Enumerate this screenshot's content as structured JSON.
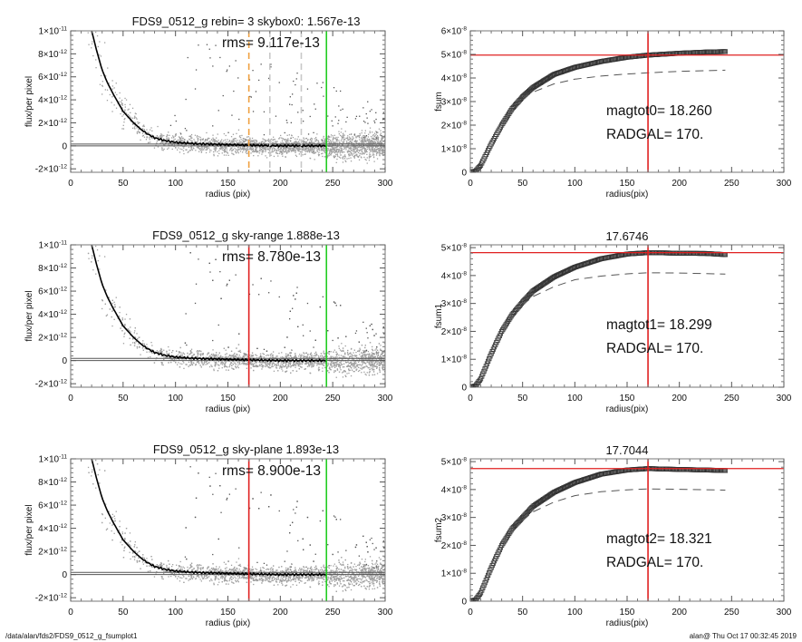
{
  "footer": {
    "left": "/data/alan/fds2/FDS9_0512_g_fsumplot1",
    "right": "alan@  Thu Oct 17 00:32:45 2019"
  },
  "colors": {
    "scatter": "#a0a0a0",
    "outlier": "#555555",
    "profile": "#000000",
    "red": "#e02020",
    "green": "#22cc22",
    "orange": "#f0a040",
    "dashed_gray": "#b8b8b8",
    "curve": "#333333"
  },
  "chart_data": [
    {
      "type": "scatter",
      "title": "FDS9_0512_g rebin= 3    skybox0:  1.567e-13",
      "annotation": "rms= 9.117e-13",
      "xlabel": "radius (pix)",
      "ylabel": "flux/per pixel",
      "xlim": [
        0,
        300
      ],
      "ylim": [
        -2.3e-12,
        1e-11
      ],
      "xticks": [
        0,
        50,
        100,
        150,
        200,
        250,
        300
      ],
      "xticklabels": [
        "0",
        "50",
        "100",
        "150",
        "200",
        "250",
        "300"
      ],
      "yticks": [
        -2e-12,
        0,
        2e-12,
        4e-12,
        6e-12,
        8e-12,
        1e-11
      ],
      "yticklabels": [
        "-2×10^-12",
        "0",
        "2×10^-12",
        "4×10^-12",
        "6×10^-12",
        "8×10^-12",
        "1×10^-11"
      ],
      "profile": {
        "x": [
          20,
          25,
          30,
          35,
          40,
          50,
          60,
          70,
          80,
          90,
          100,
          120,
          150,
          200,
          244
        ],
        "y": [
          1e-11,
          8.2e-12,
          6.6e-12,
          5.5e-12,
          4.6e-12,
          3e-12,
          2e-12,
          1.2e-12,
          7e-13,
          4.5e-13,
          3e-13,
          1.8e-13,
          1e-13,
          0,
          0
        ]
      },
      "hlines": [
        {
          "y": 0,
          "color": "#555555"
        },
        {
          "y": 1.567e-13,
          "color": "#555555"
        }
      ],
      "vlines": [
        {
          "x": 170,
          "color": "#f0a040",
          "style": "dashed"
        },
        {
          "x": 190,
          "color": "#c8c8c8",
          "style": "dashed"
        },
        {
          "x": 220,
          "color": "#c8c8c8",
          "style": "dashed"
        },
        {
          "x": 244,
          "color": "#22cc22",
          "style": "solid"
        }
      ]
    },
    {
      "type": "line",
      "title": "",
      "annotation": [
        "magtot0=  18.260",
        "RADGAL=    170."
      ],
      "xlabel": "radius(pix)",
      "ylabel": "fsum",
      "xlim": [
        0,
        300
      ],
      "ylim": [
        0,
        6e-08
      ],
      "xticks": [
        0,
        50,
        100,
        150,
        200,
        250,
        300
      ],
      "xticklabels": [
        "0",
        "50",
        "100",
        "150",
        "200",
        "250",
        "300"
      ],
      "yticks": [
        0,
        1e-08,
        2e-08,
        3e-08,
        4e-08,
        5e-08,
        6e-08
      ],
      "yticklabels": [
        "0",
        "1×10^-8",
        "2×10^-8",
        "3×10^-8",
        "4×10^-8",
        "5×10^-8",
        "6×10^-8"
      ],
      "series": [
        {
          "style": "symbols",
          "x": [
            0,
            5,
            10,
            20,
            30,
            40,
            50,
            60,
            80,
            100,
            125,
            150,
            170,
            200,
            225,
            244
          ],
          "y": [
            0,
            5e-10,
            3e-09,
            1.2e-08,
            2e-08,
            2.7e-08,
            3.2e-08,
            3.6e-08,
            4.15e-08,
            4.45e-08,
            4.7e-08,
            4.88e-08,
            4.97e-08,
            5.05e-08,
            5.1e-08,
            5.12e-08
          ]
        },
        {
          "style": "dashed",
          "x": [
            50,
            60,
            80,
            100,
            125,
            150,
            170,
            200,
            244
          ],
          "y": [
            3.15e-08,
            3.4e-08,
            3.75e-08,
            3.95e-08,
            4.08e-08,
            4.17e-08,
            4.22e-08,
            4.28e-08,
            4.33e-08
          ]
        }
      ],
      "hline": 4.97e-08,
      "vline": 170
    },
    {
      "type": "scatter",
      "title": "FDS9_0512_g sky-range  1.888e-13",
      "annotation": "rms= 8.780e-13",
      "xlabel": "radius (pix)",
      "ylabel": "flux/per pixel",
      "xlim": [
        0,
        300
      ],
      "ylim": [
        -2.3e-12,
        1e-11
      ],
      "xticks": [
        0,
        50,
        100,
        150,
        200,
        250,
        300
      ],
      "xticklabels": [
        "0",
        "50",
        "100",
        "150",
        "200",
        "250",
        "300"
      ],
      "yticks": [
        -2e-12,
        0,
        2e-12,
        4e-12,
        6e-12,
        8e-12,
        1e-11
      ],
      "yticklabels": [
        "-2×10^-12",
        "0",
        "2×10^-12",
        "4×10^-12",
        "6×10^-12",
        "8×10^-12",
        "1×10^-11"
      ],
      "profile": {
        "x": [
          20,
          25,
          30,
          35,
          40,
          50,
          60,
          70,
          80,
          90,
          100,
          120,
          150,
          200,
          244
        ],
        "y": [
          1e-11,
          8.2e-12,
          6.6e-12,
          5.5e-12,
          4.6e-12,
          3e-12,
          2e-12,
          1.2e-12,
          7e-13,
          4.5e-13,
          3e-13,
          1.8e-13,
          1e-13,
          0,
          0
        ]
      },
      "hlines": [
        {
          "y": 0,
          "color": "#555555"
        },
        {
          "y": 1.888e-13,
          "color": "#555555"
        }
      ],
      "vlines": [
        {
          "x": 170,
          "color": "#e02020",
          "style": "solid"
        },
        {
          "x": 244,
          "color": "#22cc22",
          "style": "solid"
        }
      ]
    },
    {
      "type": "line",
      "title": "17.6746",
      "annotation": [
        "magtot1=  18.299",
        "RADGAL=    170."
      ],
      "xlabel": "radius(pix)",
      "ylabel": "fsum1",
      "xlim": [
        0,
        300
      ],
      "ylim": [
        0,
        5.1e-08
      ],
      "xticks": [
        0,
        50,
        100,
        150,
        200,
        250,
        300
      ],
      "xticklabels": [
        "0",
        "50",
        "100",
        "150",
        "200",
        "250",
        "300"
      ],
      "yticks": [
        0,
        1e-08,
        2e-08,
        3e-08,
        4e-08,
        5e-08
      ],
      "yticklabels": [
        "0",
        "1×10^-8",
        "2×10^-8",
        "3×10^-8",
        "4×10^-8",
        "5×10^-8"
      ],
      "series": [
        {
          "style": "symbols",
          "x": [
            0,
            5,
            10,
            20,
            30,
            40,
            50,
            60,
            80,
            100,
            125,
            150,
            170,
            200,
            225,
            244
          ],
          "y": [
            0,
            5e-10,
            3e-09,
            1.2e-08,
            2e-08,
            2.6e-08,
            3.05e-08,
            3.45e-08,
            3.95e-08,
            4.3e-08,
            4.6e-08,
            4.77e-08,
            4.82e-08,
            4.8e-08,
            4.79e-08,
            4.75e-08
          ]
        },
        {
          "style": "dashed",
          "x": [
            50,
            60,
            80,
            100,
            125,
            150,
            170,
            200,
            244
          ],
          "y": [
            2.95e-08,
            3.25e-08,
            3.6e-08,
            3.85e-08,
            3.98e-08,
            4.06e-08,
            4.1e-08,
            4.09e-08,
            4.05e-08
          ]
        }
      ],
      "hline": 4.82e-08,
      "vline": 170
    },
    {
      "type": "scatter",
      "title": "FDS9_0512_g sky-plane  1.893e-13",
      "annotation": "rms= 8.900e-13",
      "xlabel": "radius (pix)",
      "ylabel": "flux/per pixel",
      "xlim": [
        0,
        300
      ],
      "ylim": [
        -2.3e-12,
        1e-11
      ],
      "xticks": [
        0,
        50,
        100,
        150,
        200,
        250,
        300
      ],
      "xticklabels": [
        "0",
        "50",
        "100",
        "150",
        "200",
        "250",
        "300"
      ],
      "yticks": [
        -2e-12,
        0,
        2e-12,
        4e-12,
        6e-12,
        8e-12,
        1e-11
      ],
      "yticklabels": [
        "-2×10^-12",
        "0",
        "2×10^-12",
        "4×10^-12",
        "6×10^-12",
        "8×10^-12",
        "1×10^-11"
      ],
      "profile": {
        "x": [
          20,
          25,
          30,
          35,
          40,
          50,
          60,
          70,
          80,
          90,
          100,
          120,
          150,
          200,
          244
        ],
        "y": [
          1e-11,
          8.2e-12,
          6.6e-12,
          5.5e-12,
          4.6e-12,
          3e-12,
          2e-12,
          1.2e-12,
          7e-13,
          4.5e-13,
          3e-13,
          1.8e-13,
          1e-13,
          0,
          0
        ]
      },
      "hlines": [
        {
          "y": 0,
          "color": "#555555"
        },
        {
          "y": 1.893e-13,
          "color": "#555555"
        }
      ],
      "vlines": [
        {
          "x": 170,
          "color": "#e02020",
          "style": "solid"
        },
        {
          "x": 244,
          "color": "#22cc22",
          "style": "solid"
        }
      ]
    },
    {
      "type": "line",
      "title": "17.7044",
      "annotation": [
        "magtot2= 18.321",
        "RADGAL=    170."
      ],
      "xlabel": "radius(pix)",
      "ylabel": "fsum2",
      "xlim": [
        0,
        300
      ],
      "ylim": [
        0,
        5.1e-08
      ],
      "xticks": [
        0,
        50,
        100,
        150,
        200,
        250,
        300
      ],
      "xticklabels": [
        "0",
        "50",
        "100",
        "150",
        "200",
        "250",
        "300"
      ],
      "yticks": [
        0,
        1e-08,
        2e-08,
        3e-08,
        4e-08,
        5e-08
      ],
      "yticklabels": [
        "0",
        "1×10^-8",
        "2×10^-8",
        "3×10^-8",
        "4×10^-8",
        "5×10^-8"
      ],
      "series": [
        {
          "style": "symbols",
          "x": [
            0,
            5,
            10,
            20,
            30,
            40,
            50,
            60,
            80,
            100,
            125,
            150,
            170,
            200,
            225,
            244
          ],
          "y": [
            0,
            5e-10,
            3e-09,
            1.2e-08,
            2e-08,
            2.6e-08,
            3e-08,
            3.4e-08,
            3.9e-08,
            4.25e-08,
            4.55e-08,
            4.7e-08,
            4.75e-08,
            4.72e-08,
            4.7e-08,
            4.68e-08
          ]
        },
        {
          "style": "dashed",
          "x": [
            50,
            60,
            80,
            100,
            125,
            150,
            170,
            200,
            244
          ],
          "y": [
            2.9e-08,
            3.2e-08,
            3.55e-08,
            3.78e-08,
            3.92e-08,
            3.99e-08,
            4.02e-08,
            4.01e-08,
            3.98e-08
          ]
        }
      ],
      "hline": 4.75e-08,
      "vline": 170
    }
  ]
}
